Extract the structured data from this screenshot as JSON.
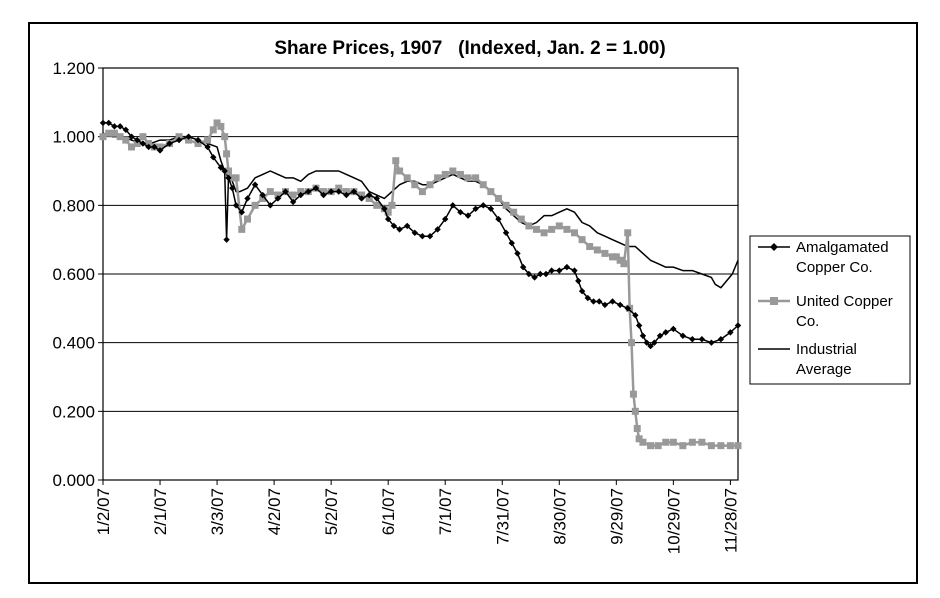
{
  "chart_data": {
    "type": "line",
    "title": "Share Prices, 1907   (Indexed, Jan. 2 = 1.00)",
    "xlabel": "",
    "ylabel": "",
    "ylim": [
      0,
      1.2
    ],
    "y_ticks": [
      "0.000",
      "0.200",
      "0.400",
      "0.600",
      "0.800",
      "1.000",
      "1.200"
    ],
    "x_ticks": [
      "1/2/07",
      "2/1/07",
      "3/3/07",
      "4/2/07",
      "5/2/07",
      "6/1/07",
      "7/1/07",
      "7/31/07",
      "8/30/07",
      "9/29/07",
      "10/29/07",
      "11/28/07"
    ],
    "x_tick_days": [
      0,
      30,
      60,
      90,
      120,
      150,
      180,
      210,
      240,
      270,
      300,
      330
    ],
    "x_range_days": [
      0,
      334
    ],
    "grid": "horizontal",
    "legend_position": "right",
    "series": [
      {
        "name": "Amalgamated Copper Co.",
        "color": "#000000",
        "marker": "diamond",
        "x": [
          0,
          3,
          6,
          9,
          12,
          15,
          18,
          21,
          24,
          27,
          30,
          35,
          40,
          45,
          50,
          55,
          58,
          62,
          64,
          65,
          66,
          68,
          70,
          73,
          76,
          80,
          84,
          88,
          92,
          96,
          100,
          104,
          108,
          112,
          116,
          120,
          124,
          128,
          132,
          136,
          140,
          144,
          148,
          150,
          153,
          156,
          160,
          164,
          168,
          172,
          176,
          180,
          184,
          188,
          192,
          196,
          200,
          204,
          208,
          212,
          215,
          218,
          221,
          224,
          227,
          230,
          233,
          236,
          240,
          244,
          248,
          250,
          252,
          255,
          258,
          261,
          264,
          268,
          272,
          276,
          280,
          282,
          284,
          286,
          288,
          290,
          293,
          296,
          300,
          305,
          310,
          315,
          320,
          325,
          330,
          334
        ],
        "y": [
          1.04,
          1.04,
          1.03,
          1.03,
          1.02,
          1.0,
          0.99,
          0.98,
          0.97,
          0.97,
          0.96,
          0.98,
          0.99,
          1.0,
          0.99,
          0.97,
          0.94,
          0.91,
          0.9,
          0.7,
          0.88,
          0.85,
          0.8,
          0.78,
          0.82,
          0.86,
          0.83,
          0.8,
          0.82,
          0.84,
          0.81,
          0.83,
          0.84,
          0.85,
          0.83,
          0.84,
          0.84,
          0.83,
          0.84,
          0.82,
          0.83,
          0.82,
          0.79,
          0.76,
          0.74,
          0.73,
          0.74,
          0.72,
          0.71,
          0.71,
          0.73,
          0.76,
          0.8,
          0.78,
          0.77,
          0.79,
          0.8,
          0.79,
          0.76,
          0.72,
          0.69,
          0.66,
          0.62,
          0.6,
          0.59,
          0.6,
          0.6,
          0.61,
          0.61,
          0.62,
          0.61,
          0.58,
          0.55,
          0.53,
          0.52,
          0.52,
          0.51,
          0.52,
          0.51,
          0.5,
          0.48,
          0.45,
          0.42,
          0.4,
          0.39,
          0.4,
          0.42,
          0.43,
          0.44,
          0.42,
          0.41,
          0.41,
          0.4,
          0.41,
          0.43,
          0.45
        ]
      },
      {
        "name": "United Copper Co.",
        "color": "#999999",
        "marker": "square",
        "x": [
          0,
          3,
          6,
          9,
          12,
          15,
          18,
          21,
          24,
          27,
          30,
          35,
          40,
          45,
          50,
          55,
          58,
          60,
          62,
          64,
          65,
          66,
          68,
          70,
          73,
          76,
          80,
          84,
          88,
          92,
          96,
          100,
          104,
          108,
          112,
          116,
          120,
          124,
          128,
          132,
          136,
          140,
          144,
          148,
          150,
          152,
          154,
          156,
          160,
          164,
          168,
          172,
          176,
          180,
          184,
          188,
          192,
          196,
          200,
          204,
          208,
          212,
          216,
          220,
          224,
          228,
          232,
          236,
          240,
          244,
          248,
          252,
          256,
          260,
          264,
          268,
          270,
          272,
          274,
          276,
          277,
          278,
          279,
          280,
          281,
          282,
          284,
          288,
          292,
          296,
          300,
          305,
          310,
          315,
          320,
          325,
          330,
          334
        ],
        "y": [
          1.0,
          1.01,
          1.01,
          1.0,
          0.99,
          0.97,
          0.98,
          1.0,
          0.98,
          0.97,
          0.97,
          0.98,
          1.0,
          0.99,
          0.98,
          0.99,
          1.02,
          1.04,
          1.03,
          1.0,
          0.95,
          0.9,
          0.88,
          0.88,
          0.73,
          0.76,
          0.8,
          0.82,
          0.84,
          0.83,
          0.84,
          0.83,
          0.84,
          0.84,
          0.85,
          0.84,
          0.84,
          0.85,
          0.84,
          0.84,
          0.83,
          0.82,
          0.8,
          0.79,
          0.78,
          0.8,
          0.93,
          0.9,
          0.88,
          0.86,
          0.84,
          0.86,
          0.88,
          0.89,
          0.9,
          0.89,
          0.88,
          0.88,
          0.86,
          0.84,
          0.82,
          0.8,
          0.78,
          0.76,
          0.74,
          0.73,
          0.72,
          0.73,
          0.74,
          0.73,
          0.72,
          0.7,
          0.68,
          0.67,
          0.66,
          0.65,
          0.65,
          0.64,
          0.63,
          0.72,
          0.5,
          0.4,
          0.25,
          0.2,
          0.15,
          0.12,
          0.11,
          0.1,
          0.1,
          0.11,
          0.11,
          0.1,
          0.11,
          0.11,
          0.1,
          0.1,
          0.1,
          0.1
        ]
      },
      {
        "name": "Industrial Average",
        "color": "#000000",
        "marker": "none",
        "x": [
          0,
          5,
          10,
          15,
          20,
          25,
          30,
          35,
          40,
          45,
          50,
          55,
          60,
          62,
          64,
          66,
          68,
          70,
          72,
          76,
          80,
          84,
          88,
          92,
          96,
          100,
          104,
          108,
          112,
          116,
          120,
          124,
          128,
          132,
          136,
          140,
          144,
          148,
          152,
          156,
          160,
          164,
          168,
          172,
          176,
          180,
          184,
          188,
          192,
          196,
          200,
          204,
          208,
          212,
          216,
          220,
          224,
          228,
          232,
          236,
          240,
          244,
          248,
          252,
          256,
          260,
          264,
          268,
          272,
          276,
          280,
          284,
          288,
          292,
          296,
          300,
          305,
          310,
          315,
          320,
          322,
          325,
          328,
          331,
          334
        ],
        "y": [
          1.01,
          1.0,
          1.0,
          0.99,
          0.98,
          0.98,
          0.99,
          0.99,
          1.0,
          1.0,
          0.99,
          0.98,
          0.97,
          0.93,
          0.9,
          0.88,
          0.87,
          0.84,
          0.84,
          0.85,
          0.88,
          0.89,
          0.9,
          0.89,
          0.88,
          0.88,
          0.87,
          0.89,
          0.9,
          0.9,
          0.9,
          0.9,
          0.89,
          0.88,
          0.87,
          0.84,
          0.83,
          0.82,
          0.84,
          0.86,
          0.87,
          0.87,
          0.86,
          0.86,
          0.87,
          0.88,
          0.89,
          0.88,
          0.87,
          0.87,
          0.86,
          0.84,
          0.82,
          0.79,
          0.77,
          0.75,
          0.74,
          0.75,
          0.77,
          0.77,
          0.78,
          0.79,
          0.78,
          0.75,
          0.74,
          0.72,
          0.71,
          0.7,
          0.69,
          0.68,
          0.68,
          0.66,
          0.64,
          0.63,
          0.62,
          0.62,
          0.61,
          0.61,
          0.6,
          0.59,
          0.57,
          0.56,
          0.58,
          0.6,
          0.64
        ]
      }
    ]
  }
}
